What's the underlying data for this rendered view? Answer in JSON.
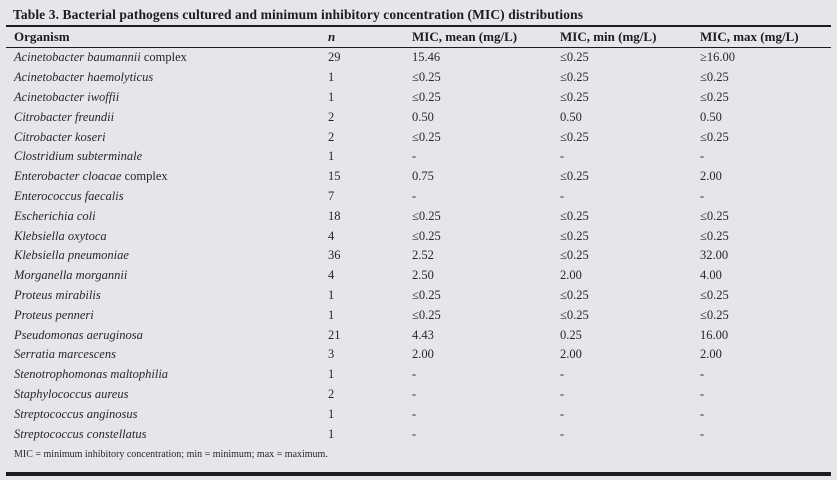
{
  "title": "Table 3. Bacterial pathogens cultured and minimum inhibitory concentration (MIC) distributions",
  "table": {
    "columns": [
      {
        "label": "Organism",
        "italic": false
      },
      {
        "label": "n",
        "italic": true
      },
      {
        "label": "MIC, mean (mg/L)",
        "italic": false
      },
      {
        "label": "MIC, min (mg/L)",
        "italic": false
      },
      {
        "label": "MIC, max (mg/L)",
        "italic": false
      }
    ],
    "rows": [
      {
        "organism": "Acinetobacter baumannii",
        "suffix": "complex",
        "n": "29",
        "mean": "15.46",
        "min": "≤0.25",
        "max": "≥16.00"
      },
      {
        "organism": "Acinetobacter haemolyticus",
        "suffix": "",
        "n": "1",
        "mean": "≤0.25",
        "min": "≤0.25",
        "max": "≤0.25"
      },
      {
        "organism": "Acinetobacter iwoffii",
        "suffix": "",
        "n": "1",
        "mean": "≤0.25",
        "min": "≤0.25",
        "max": "≤0.25"
      },
      {
        "organism": "Citrobacter freundii",
        "suffix": "",
        "n": "2",
        "mean": "0.50",
        "min": "0.50",
        "max": "0.50"
      },
      {
        "organism": "Citrobacter koseri",
        "suffix": "",
        "n": "2",
        "mean": "≤0.25",
        "min": "≤0.25",
        "max": "≤0.25"
      },
      {
        "organism": "Clostridium subterminale",
        "suffix": "",
        "n": "1",
        "mean": "-",
        "min": "-",
        "max": "-"
      },
      {
        "organism": "Enterobacter cloacae",
        "suffix": "complex",
        "n": "15",
        "mean": "0.75",
        "min": "≤0.25",
        "max": "2.00"
      },
      {
        "organism": "Enterococcus faecalis",
        "suffix": "",
        "n": "7",
        "mean": "-",
        "min": "-",
        "max": "-"
      },
      {
        "organism": "Escherichia coli",
        "suffix": "",
        "n": "18",
        "mean": "≤0.25",
        "min": "≤0.25",
        "max": "≤0.25"
      },
      {
        "organism": "Klebsiella oxytoca",
        "suffix": "",
        "n": "4",
        "mean": "≤0.25",
        "min": "≤0.25",
        "max": "≤0.25"
      },
      {
        "organism": "Klebsiella pneumoniae",
        "suffix": "",
        "n": "36",
        "mean": "2.52",
        "min": "≤0.25",
        "max": "32.00"
      },
      {
        "organism": "Morganella morgannii",
        "suffix": "",
        "n": "4",
        "mean": "2.50",
        "min": "2.00",
        "max": "4.00"
      },
      {
        "organism": "Proteus mirabilis",
        "suffix": "",
        "n": "1",
        "mean": "≤0.25",
        "min": "≤0.25",
        "max": "≤0.25"
      },
      {
        "organism": "Proteus penneri",
        "suffix": "",
        "n": "1",
        "mean": "≤0.25",
        "min": "≤0.25",
        "max": "≤0.25"
      },
      {
        "organism": "Pseudomonas aeruginosa",
        "suffix": "",
        "n": "21",
        "mean": "4.43",
        "min": "0.25",
        "max": "16.00"
      },
      {
        "organism": "Serratia marcescens",
        "suffix": "",
        "n": "3",
        "mean": "2.00",
        "min": "2.00",
        "max": "2.00"
      },
      {
        "organism": "Stenotrophomonas maltophilia",
        "suffix": "",
        "n": "1",
        "mean": "-",
        "min": "-",
        "max": "-"
      },
      {
        "organism": "Staphylococcus aureus",
        "suffix": "",
        "n": "2",
        "mean": "-",
        "min": "-",
        "max": "-"
      },
      {
        "organism": "Streptococcus anginosus",
        "suffix": "",
        "n": "1",
        "mean": "-",
        "min": "-",
        "max": "-"
      },
      {
        "organism": "Streptococcus constellatus",
        "suffix": "",
        "n": "1",
        "mean": "-",
        "min": "-",
        "max": "-"
      }
    ]
  },
  "footnote": "MIC = minimum inhibitory concentration; min = minimum; max = maximum.",
  "colors": {
    "background": "#e6e6ea",
    "rule": "#1c1c20",
    "text": "#26262e"
  }
}
